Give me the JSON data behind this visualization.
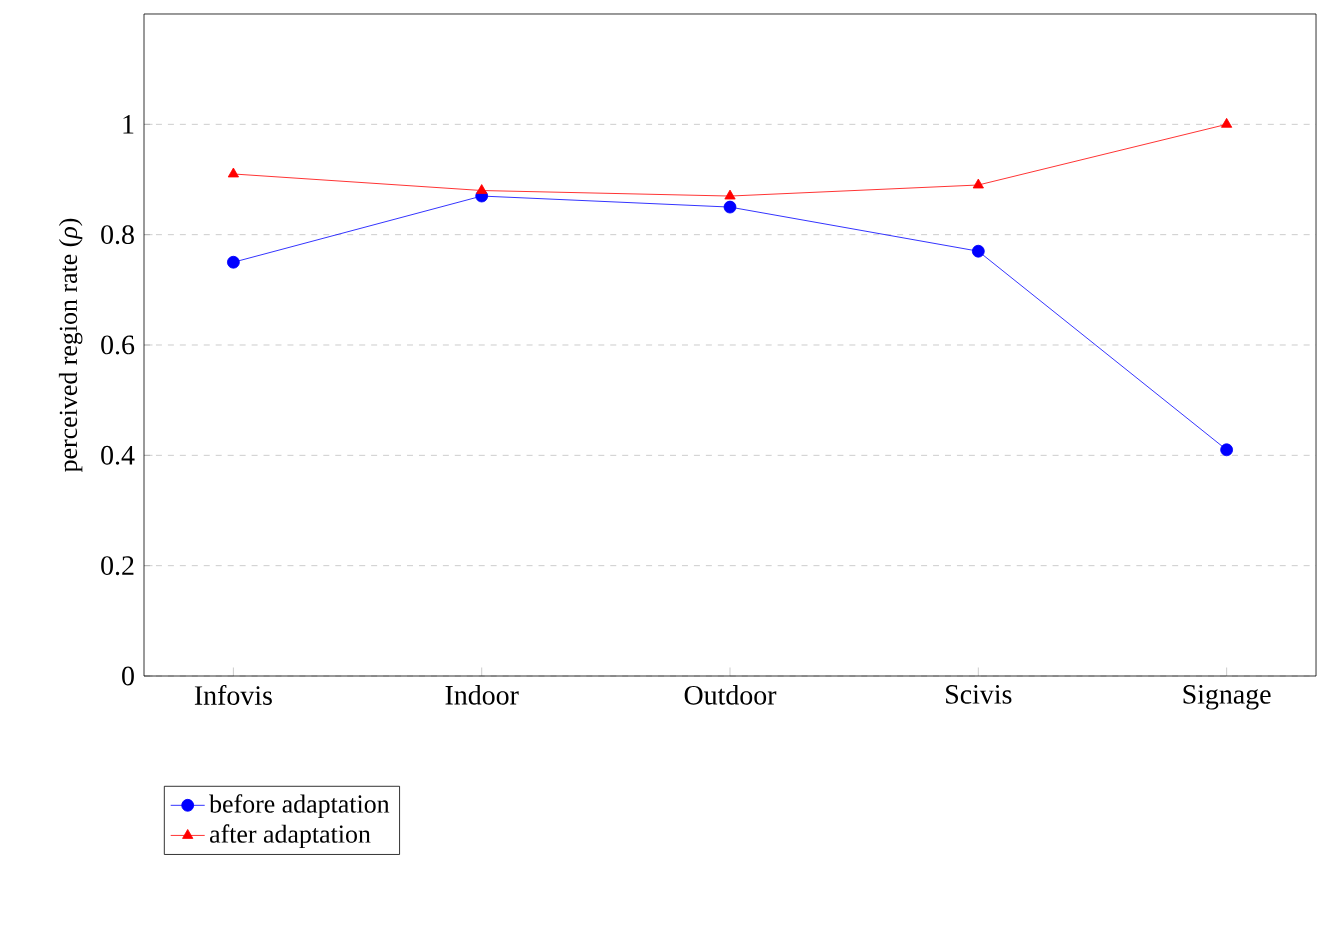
{
  "chart_data": {
    "type": "line",
    "ylabel": "perceived region rate (*ρ*)",
    "categories": [
      "Infovis",
      "Indoor",
      "Outdoor",
      "Scivis",
      "Signage"
    ],
    "series": [
      {
        "name": "before adaptation",
        "color": "#0000ff",
        "marker": "circle",
        "values": [
          0.75,
          0.87,
          0.85,
          0.77,
          0.41
        ]
      },
      {
        "name": "after adaptation",
        "color": "#ff0000",
        "marker": "triangle",
        "values": [
          0.91,
          0.88,
          0.87,
          0.89,
          1.0
        ]
      }
    ],
    "ylim": [
      0,
      1.2
    ],
    "yticks": [
      0,
      0.2,
      0.4,
      0.6,
      0.8,
      1
    ],
    "grid": "y",
    "legend": "bottom left",
    "line_style": "solid"
  }
}
